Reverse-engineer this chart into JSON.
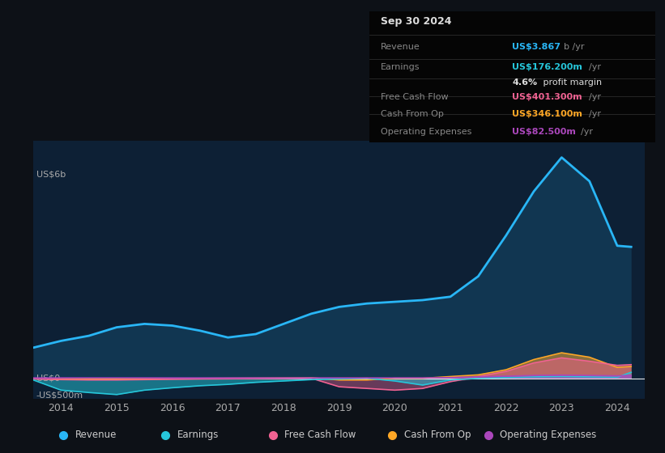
{
  "background_color": "#0d1117",
  "plot_bg_color": "#0d2035",
  "title_box_bg": "#0a0a0a",
  "years": [
    2013.5,
    2014,
    2014.5,
    2015,
    2015.5,
    2016,
    2016.5,
    2017,
    2017.5,
    2018,
    2018.5,
    2019,
    2019.5,
    2020,
    2020.5,
    2021,
    2021.5,
    2022,
    2022.5,
    2023,
    2023.5,
    2024,
    2024.25
  ],
  "revenue": [
    0.9,
    1.1,
    1.25,
    1.5,
    1.6,
    1.55,
    1.4,
    1.2,
    1.3,
    1.6,
    1.9,
    2.1,
    2.2,
    2.25,
    2.3,
    2.4,
    3.0,
    4.2,
    5.5,
    6.5,
    5.8,
    3.9,
    3.867
  ],
  "earnings": [
    -0.05,
    -0.35,
    -0.42,
    -0.48,
    -0.35,
    -0.28,
    -0.22,
    -0.18,
    -0.12,
    -0.08,
    -0.04,
    -0.02,
    0.0,
    -0.08,
    -0.2,
    -0.05,
    0.0,
    0.02,
    0.04,
    0.05,
    0.04,
    0.03,
    0.176
  ],
  "free_cash_flow": [
    -0.02,
    -0.04,
    -0.05,
    -0.05,
    -0.04,
    -0.03,
    -0.02,
    -0.015,
    -0.01,
    -0.005,
    0.0,
    -0.25,
    -0.3,
    -0.35,
    -0.3,
    -0.1,
    0.05,
    0.2,
    0.45,
    0.6,
    0.5,
    0.38,
    0.401
  ],
  "cash_from_op": [
    -0.01,
    -0.02,
    -0.03,
    -0.03,
    -0.02,
    -0.01,
    -0.005,
    0.0,
    0.005,
    0.01,
    0.015,
    -0.05,
    -0.05,
    0.0,
    0.0,
    0.05,
    0.1,
    0.25,
    0.55,
    0.75,
    0.62,
    0.32,
    0.346
  ],
  "operating_expenses": [
    0.01,
    0.01,
    0.01,
    0.01,
    0.01,
    0.01,
    0.01,
    0.01,
    0.01,
    0.01,
    0.01,
    0.01,
    0.01,
    0.01,
    0.01,
    0.02,
    0.04,
    0.06,
    0.08,
    0.09,
    0.08,
    0.07,
    0.0825
  ],
  "revenue_color": "#29b6f6",
  "earnings_color": "#26c6da",
  "free_cash_flow_color": "#f06292",
  "cash_from_op_color": "#ffa726",
  "operating_expenses_color": "#ab47bc",
  "ylabel_top": "US$6b",
  "ylabel_zero": "US$0",
  "ylabel_neg": "-US$500m",
  "xlim": [
    2013.5,
    2024.5
  ],
  "ylim": [
    -0.6,
    7.0
  ],
  "xticks": [
    2014,
    2015,
    2016,
    2017,
    2018,
    2019,
    2020,
    2021,
    2022,
    2023,
    2024
  ],
  "info_box": {
    "date": "Sep 30 2024",
    "revenue_label": "Revenue",
    "revenue_value": "US$3.867b /yr",
    "earnings_label": "Earnings",
    "earnings_value": "US$176.200m /yr",
    "margin_text": "4.6% profit margin",
    "fcf_label": "Free Cash Flow",
    "fcf_value": "US$401.300m /yr",
    "cfop_label": "Cash From Op",
    "cfop_value": "US$346.100m /yr",
    "opex_label": "Operating Expenses",
    "opex_value": "US$82.500m /yr"
  },
  "legend_items": [
    "Revenue",
    "Earnings",
    "Free Cash Flow",
    "Cash From Op",
    "Operating Expenses"
  ]
}
